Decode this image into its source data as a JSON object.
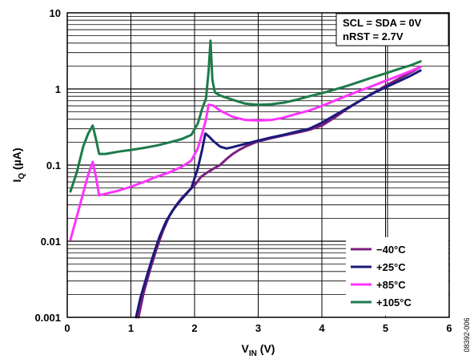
{
  "chart_data": {
    "type": "line",
    "x_axis": {
      "label_main": "V",
      "label_sub": "IN",
      "label_unit": " (V)",
      "range": [
        0,
        6
      ],
      "ticks": [
        "0",
        "1",
        "2",
        "3",
        "4",
        "5",
        "6"
      ]
    },
    "y_axis": {
      "label_main": "I",
      "label_sub": "Q",
      "label_unit": " (µA)",
      "scale": "log",
      "range": [
        0.001,
        10
      ],
      "ticks": [
        "0.001",
        "0.01",
        "0.1",
        "1",
        "10"
      ]
    },
    "grid": true,
    "annotations": [
      "SCL = SDA = 0V",
      "nRST = 2.7V"
    ],
    "figure_id": "08392-006",
    "legend_position": "bottom-right",
    "series": [
      {
        "name": "−40°C",
        "color": "#7b1f7f",
        "points": [
          [
            1.12,
            0.001
          ],
          [
            1.2,
            0.0021
          ],
          [
            1.3,
            0.0042
          ],
          [
            1.4,
            0.0078
          ],
          [
            1.5,
            0.0135
          ],
          [
            1.6,
            0.021
          ],
          [
            1.7,
            0.029
          ],
          [
            1.8,
            0.037
          ],
          [
            1.9,
            0.045
          ],
          [
            2.0,
            0.054
          ],
          [
            2.1,
            0.07
          ],
          [
            2.2,
            0.08
          ],
          [
            2.3,
            0.09
          ],
          [
            2.4,
            0.1
          ],
          [
            2.5,
            0.12
          ],
          [
            2.6,
            0.14
          ],
          [
            2.7,
            0.158
          ],
          [
            2.8,
            0.175
          ],
          [
            2.9,
            0.19
          ],
          [
            3.0,
            0.205
          ],
          [
            3.2,
            0.225
          ],
          [
            3.4,
            0.245
          ],
          [
            3.6,
            0.265
          ],
          [
            3.8,
            0.29
          ],
          [
            4.0,
            0.33
          ],
          [
            4.2,
            0.42
          ],
          [
            4.4,
            0.55
          ],
          [
            4.6,
            0.7
          ],
          [
            4.8,
            0.88
          ],
          [
            5.0,
            1.1
          ],
          [
            5.2,
            1.35
          ],
          [
            5.4,
            1.65
          ],
          [
            5.55,
            1.95
          ]
        ]
      },
      {
        "name": "+25°C",
        "color": "#1a1a7a",
        "points": [
          [
            1.08,
            0.001
          ],
          [
            1.15,
            0.0018
          ],
          [
            1.25,
            0.0035
          ],
          [
            1.35,
            0.0065
          ],
          [
            1.45,
            0.0115
          ],
          [
            1.55,
            0.018
          ],
          [
            1.65,
            0.025
          ],
          [
            1.75,
            0.032
          ],
          [
            1.85,
            0.04
          ],
          [
            1.95,
            0.05
          ],
          [
            2.05,
            0.09
          ],
          [
            2.12,
            0.16
          ],
          [
            2.17,
            0.26
          ],
          [
            2.22,
            0.24
          ],
          [
            2.3,
            0.205
          ],
          [
            2.4,
            0.175
          ],
          [
            2.5,
            0.165
          ],
          [
            2.6,
            0.172
          ],
          [
            2.8,
            0.19
          ],
          [
            3.0,
            0.21
          ],
          [
            3.2,
            0.23
          ],
          [
            3.4,
            0.25
          ],
          [
            3.6,
            0.275
          ],
          [
            3.8,
            0.3
          ],
          [
            4.0,
            0.36
          ],
          [
            4.2,
            0.45
          ],
          [
            4.4,
            0.56
          ],
          [
            4.6,
            0.7
          ],
          [
            4.8,
            0.87
          ],
          [
            5.0,
            1.05
          ],
          [
            5.2,
            1.25
          ],
          [
            5.4,
            1.5
          ],
          [
            5.55,
            1.75
          ]
        ]
      },
      {
        "name": "+85°C",
        "color": "#ff33ff",
        "points": [
          [
            0.05,
            0.0105
          ],
          [
            0.15,
            0.021
          ],
          [
            0.25,
            0.043
          ],
          [
            0.33,
            0.075
          ],
          [
            0.4,
            0.11
          ],
          [
            0.45,
            0.07
          ],
          [
            0.5,
            0.04
          ],
          [
            0.6,
            0.042
          ],
          [
            0.8,
            0.046
          ],
          [
            1.0,
            0.052
          ],
          [
            1.2,
            0.06
          ],
          [
            1.4,
            0.07
          ],
          [
            1.6,
            0.08
          ],
          [
            1.8,
            0.095
          ],
          [
            1.95,
            0.115
          ],
          [
            2.05,
            0.165
          ],
          [
            2.12,
            0.26
          ],
          [
            2.18,
            0.4
          ],
          [
            2.22,
            0.62
          ],
          [
            2.3,
            0.6
          ],
          [
            2.4,
            0.52
          ],
          [
            2.6,
            0.43
          ],
          [
            2.8,
            0.39
          ],
          [
            3.0,
            0.385
          ],
          [
            3.2,
            0.39
          ],
          [
            3.4,
            0.42
          ],
          [
            3.6,
            0.47
          ],
          [
            3.8,
            0.52
          ],
          [
            4.0,
            0.6
          ],
          [
            4.2,
            0.7
          ],
          [
            4.4,
            0.82
          ],
          [
            4.6,
            0.95
          ],
          [
            4.8,
            1.1
          ],
          [
            5.0,
            1.28
          ],
          [
            5.2,
            1.48
          ],
          [
            5.4,
            1.72
          ],
          [
            5.55,
            1.95
          ]
        ]
      },
      {
        "name": "+105°C",
        "color": "#1e7a4a",
        "points": [
          [
            0.05,
            0.045
          ],
          [
            0.15,
            0.08
          ],
          [
            0.25,
            0.175
          ],
          [
            0.33,
            0.26
          ],
          [
            0.4,
            0.33
          ],
          [
            0.45,
            0.22
          ],
          [
            0.5,
            0.14
          ],
          [
            0.6,
            0.14
          ],
          [
            0.8,
            0.15
          ],
          [
            1.0,
            0.158
          ],
          [
            1.2,
            0.168
          ],
          [
            1.4,
            0.18
          ],
          [
            1.6,
            0.198
          ],
          [
            1.8,
            0.22
          ],
          [
            1.95,
            0.25
          ],
          [
            2.05,
            0.35
          ],
          [
            2.12,
            0.55
          ],
          [
            2.18,
            0.75
          ],
          [
            2.22,
            1.7
          ],
          [
            2.25,
            4.3
          ],
          [
            2.28,
            1.3
          ],
          [
            2.32,
            0.9
          ],
          [
            2.4,
            0.82
          ],
          [
            2.6,
            0.72
          ],
          [
            2.8,
            0.64
          ],
          [
            3.0,
            0.62
          ],
          [
            3.2,
            0.63
          ],
          [
            3.4,
            0.66
          ],
          [
            3.6,
            0.72
          ],
          [
            3.8,
            0.8
          ],
          [
            4.0,
            0.88
          ],
          [
            4.2,
            0.98
          ],
          [
            4.4,
            1.1
          ],
          [
            4.6,
            1.25
          ],
          [
            4.8,
            1.42
          ],
          [
            5.0,
            1.6
          ],
          [
            5.2,
            1.82
          ],
          [
            5.4,
            2.05
          ],
          [
            5.55,
            2.3
          ]
        ]
      }
    ]
  }
}
